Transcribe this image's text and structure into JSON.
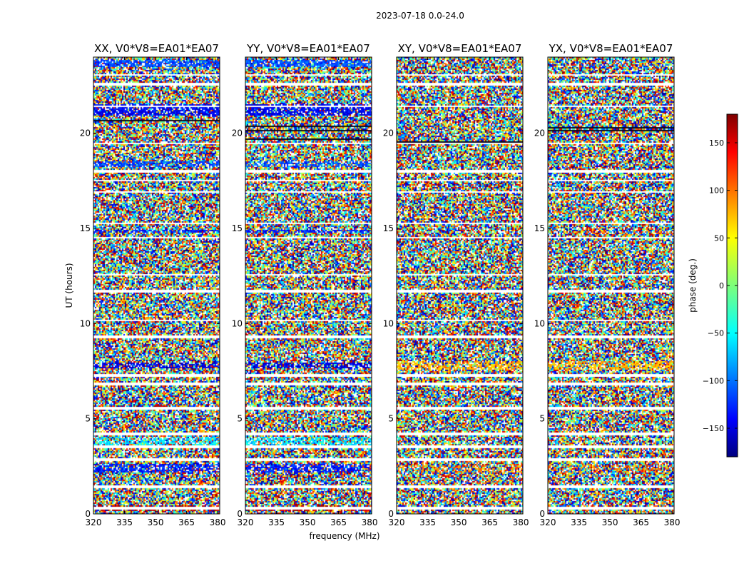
{
  "suptitle": "2023-07-18 0.0-24.0",
  "chart_data": {
    "type": "heatmap",
    "xlabel": "frequency (MHz)",
    "ylabel": "UT (hours)",
    "xlim": [
      320,
      381
    ],
    "ylim": [
      0,
      24
    ],
    "xticks": [
      320,
      335,
      350,
      365,
      380
    ],
    "yticks": [
      0,
      5,
      10,
      15,
      20
    ],
    "panels": [
      {
        "title": "XX, V0*V8=EA01*EA07"
      },
      {
        "title": "YY, V0*V8=EA01*EA07"
      },
      {
        "title": "XY, V0*V8=EA01*EA07"
      },
      {
        "title": "YX, V0*V8=EA01*EA07"
      }
    ],
    "colorbar": {
      "label": "phase (deg.)",
      "range": [
        -180,
        180
      ],
      "ticks": [
        -150,
        -100,
        -50,
        0,
        50,
        100,
        150
      ],
      "colormap": "jet"
    },
    "blank_rows_hours": [
      0.35,
      1.45,
      2.9,
      3.55,
      4.25,
      5.6,
      6.85,
      7.3,
      9.35,
      10.2,
      11.75,
      12.6,
      14.55,
      15.3,
      16.95,
      17.55,
      18.05,
      19.5,
      21.45,
      22.6,
      23.1
    ]
  }
}
